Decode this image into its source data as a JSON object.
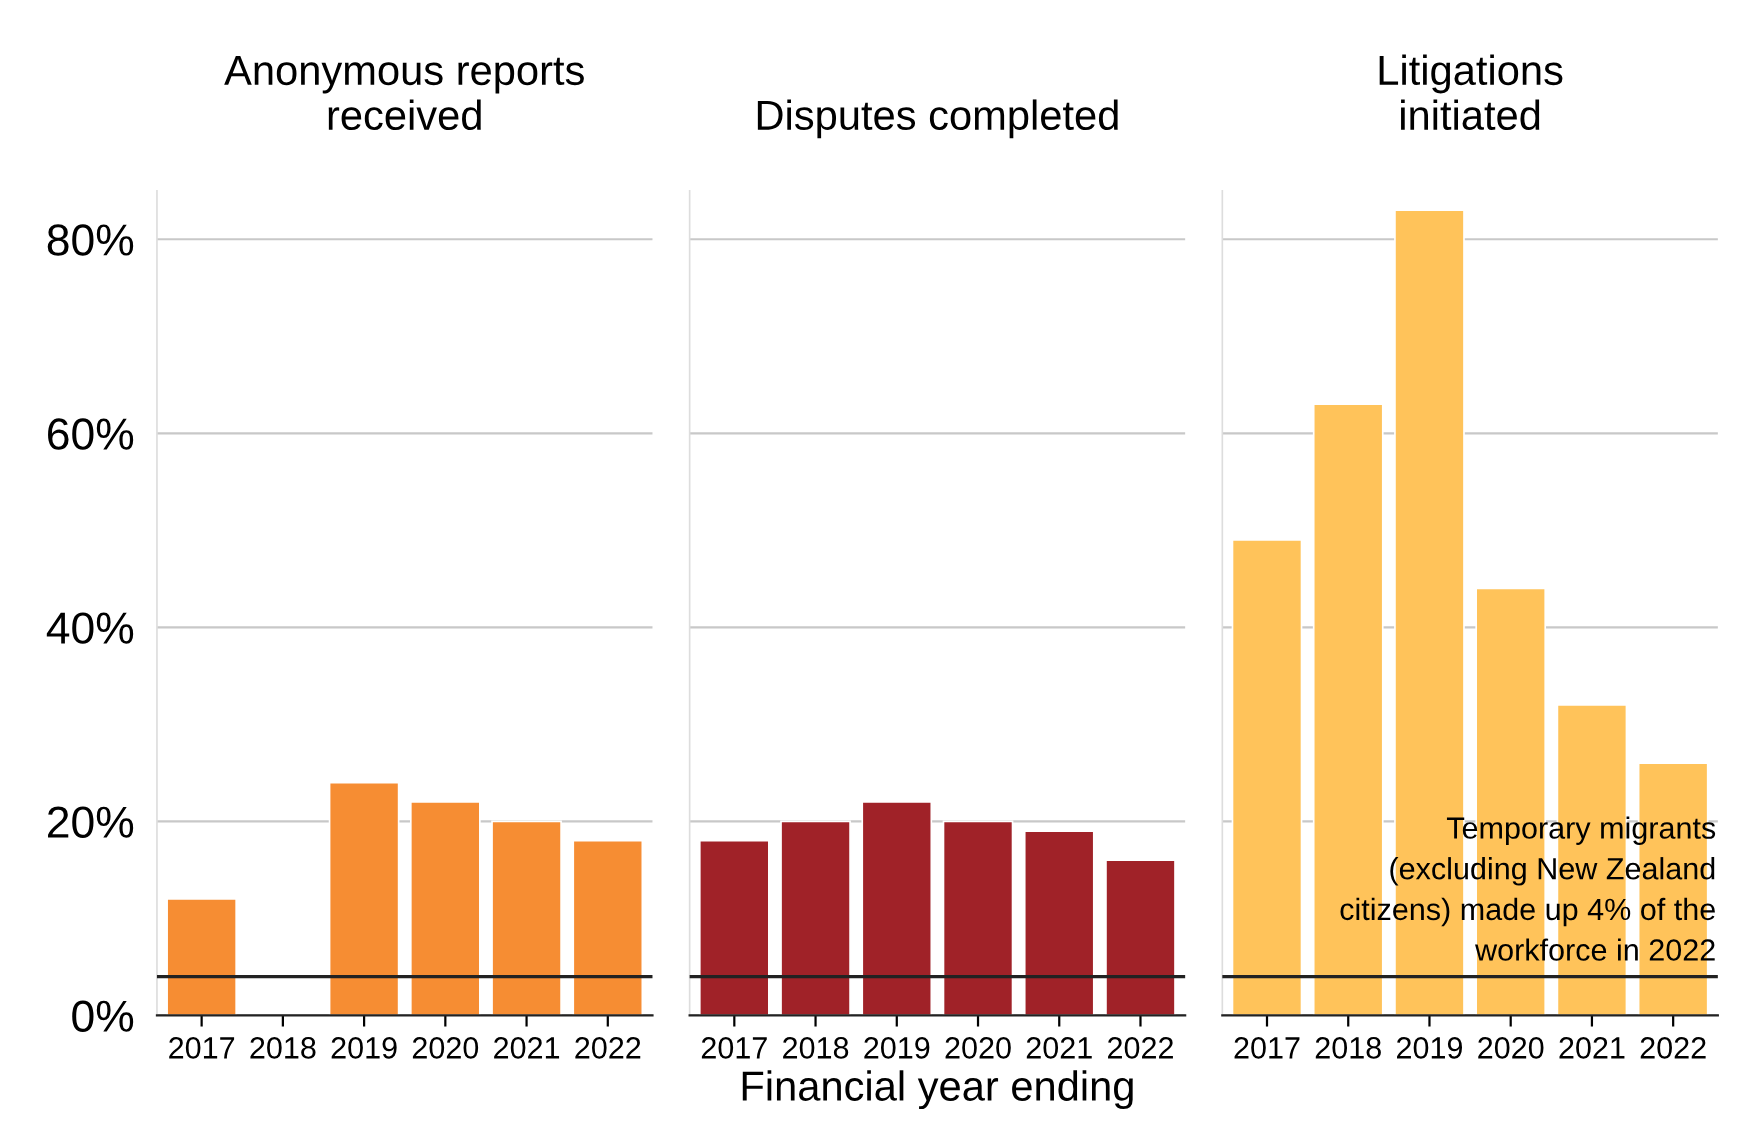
{
  "chart_data": [
    {
      "type": "bar",
      "title": "Anonymous reports\nreceived",
      "categories": [
        "2017",
        "2018",
        "2019",
        "2020",
        "2021",
        "2022"
      ],
      "series": [
        {
          "color": "#f68d33",
          "values": [
            12,
            null,
            24,
            22,
            20,
            18
          ]
        }
      ],
      "ylim": [
        0,
        85
      ],
      "yticks": [
        {
          "value": 0,
          "label": "0%"
        },
        {
          "value": 20,
          "label": "20%"
        },
        {
          "value": 40,
          "label": "40%"
        },
        {
          "value": 60,
          "label": "60%"
        },
        {
          "value": 80,
          "label": "80%"
        }
      ],
      "grid": "y",
      "ref_lines": [
        {
          "axis": "y",
          "value": 4,
          "color": "#222222"
        }
      ]
    },
    {
      "type": "bar",
      "title": "Disputes completed",
      "xlabel": "Financial year ending",
      "categories": [
        "2017",
        "2018",
        "2019",
        "2020",
        "2021",
        "2022"
      ],
      "series": [
        {
          "color": "#a02228",
          "values": [
            18,
            20,
            22,
            20,
            19,
            16
          ]
        }
      ],
      "ylim": [
        0,
        85
      ],
      "yticks": [
        {
          "value": 0,
          "label": null
        },
        {
          "value": 20,
          "label": null
        },
        {
          "value": 40,
          "label": null
        },
        {
          "value": 60,
          "label": null
        },
        {
          "value": 80,
          "label": null
        }
      ],
      "grid": "y",
      "tick_labels": "x",
      "ref_lines": [
        {
          "axis": "y",
          "value": 4,
          "color": "#222222"
        }
      ]
    },
    {
      "type": "bar",
      "title": "Litigations\ninitiated",
      "categories": [
        "2017",
        "2018",
        "2019",
        "2020",
        "2021",
        "2022"
      ],
      "series": [
        {
          "color": "#ffc35a",
          "values": [
            49,
            63,
            83,
            44,
            32,
            26
          ]
        }
      ],
      "ylim": [
        0,
        85
      ],
      "yticks": [
        {
          "value": 0,
          "label": null
        },
        {
          "value": 20,
          "label": null
        },
        {
          "value": 40,
          "label": null
        },
        {
          "value": 60,
          "label": null
        },
        {
          "value": 80,
          "label": null
        }
      ],
      "grid": "y",
      "tick_labels": "x",
      "ref_lines": [
        {
          "axis": "y",
          "value": 4,
          "color": "#222222",
          "label": "Temporary migrants\n(excluding New Zealand\ncitizens) made up 4% of the\nworkforce in 2022"
        }
      ]
    }
  ]
}
